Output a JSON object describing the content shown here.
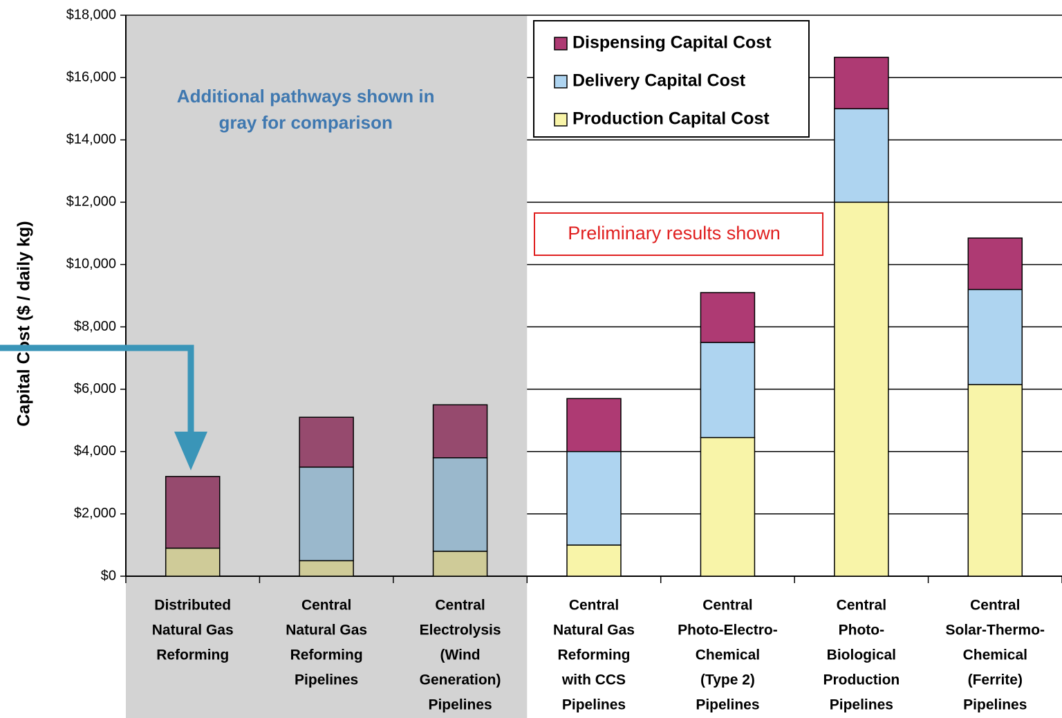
{
  "chart_data": {
    "type": "stacked-bar",
    "y_label": "Capital Cost ($ / daily kg)",
    "categories": [
      [
        "Distributed",
        "Natural Gas",
        "Reforming"
      ],
      [
        "Central",
        "Natural Gas",
        "Reforming",
        "Pipelines"
      ],
      [
        "Central",
        "Electrolysis",
        "(Wind",
        "Generation)",
        "Pipelines"
      ],
      [
        "Central",
        "Natural Gas",
        "Reforming",
        "with CCS",
        "Pipelines"
      ],
      [
        "Central",
        "Photo-Electro-",
        "Chemical",
        "(Type 2)",
        "Pipelines"
      ],
      [
        "Central",
        "Photo-",
        "Biological",
        "Production",
        "Pipelines"
      ],
      [
        "Central",
        "Solar-Thermo-",
        "Chemical",
        "(Ferrite)",
        "Pipelines"
      ]
    ],
    "series": [
      {
        "name": "Production Capital Cost",
        "color": "#f8f4a8",
        "muted_color": "#cfcb98",
        "values": [
          900,
          500,
          800,
          1000,
          4450,
          12000,
          6150
        ]
      },
      {
        "name": "Delivery Capital Cost",
        "color": "#aed4f0",
        "muted_color": "#9ab8cc",
        "values": [
          0,
          3000,
          3000,
          3000,
          3050,
          3000,
          3050
        ]
      },
      {
        "name": "Dispensing Capital Cost",
        "color": "#ae3a73",
        "muted_color": "#964a6e",
        "values": [
          2300,
          1600,
          1700,
          1700,
          1600,
          1650,
          1650
        ]
      }
    ],
    "ylim": [
      0,
      18000
    ],
    "yticks": [
      {
        "value": 0,
        "label": "$0"
      },
      {
        "value": 2000,
        "label": "$2,000"
      },
      {
        "value": 4000,
        "label": "$4,000"
      },
      {
        "value": 6000,
        "label": "$6,000"
      },
      {
        "value": 8000,
        "label": "$8,000"
      },
      {
        "value": 10000,
        "label": "$10,000"
      },
      {
        "value": 12000,
        "label": "$12,000"
      },
      {
        "value": 14000,
        "label": "$14,000"
      },
      {
        "value": 16000,
        "label": "$16,000"
      },
      {
        "value": 18000,
        "label": "$18,000"
      }
    ],
    "grid": true,
    "legend": "top-center",
    "highlight_region": {
      "categories": [
        0,
        1,
        2
      ],
      "color": "#d3d3d3",
      "annotation": [
        "Additional pathways shown in",
        "gray for comparison"
      ]
    },
    "annotation": "Preliminary results shown"
  }
}
